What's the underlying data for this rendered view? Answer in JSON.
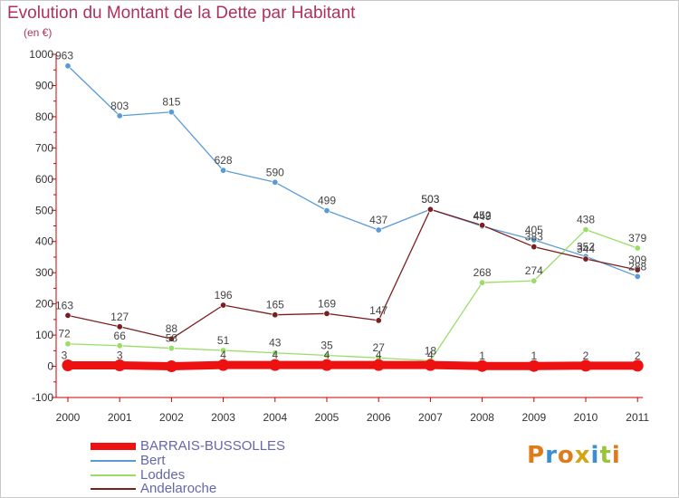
{
  "header": {
    "title": "Evolution du Montant de la Dette par Habitant",
    "subtitle": "(en €)"
  },
  "logo": {
    "text": "Proxiti",
    "colors": [
      "#e07b1c",
      "#3a8fd0",
      "#e07b1c",
      "#d6a516",
      "#3a8fd0",
      "#9ac43a",
      "#e07b1c"
    ]
  },
  "chart_data": {
    "type": "line",
    "title": "Evolution du Montant de la Dette par Habitant",
    "subtitle": "(en €)",
    "xlabel": "",
    "ylabel": "",
    "x": [
      "2000",
      "2001",
      "2002",
      "2003",
      "2004",
      "2005",
      "2006",
      "2007",
      "2008",
      "2009",
      "2010",
      "2011"
    ],
    "ylim": [
      -100,
      1000
    ],
    "yticks": [
      -100,
      0,
      100,
      200,
      300,
      400,
      500,
      600,
      700,
      800,
      900,
      1000
    ],
    "grid": false,
    "legend_position": "bottom-left",
    "series": [
      {
        "name": "BARRAIS-BUSSOLLES",
        "color": "#ee1111",
        "values": [
          3,
          3,
          0,
          4,
          4,
          4,
          4,
          4,
          1,
          1,
          2,
          2
        ],
        "labels": [
          "3",
          "3",
          "",
          "4",
          "4",
          "4",
          "4",
          "4",
          "1",
          "1",
          "2",
          "2"
        ]
      },
      {
        "name": "Bert",
        "color": "#5b9bd5",
        "values": [
          963,
          803,
          815,
          628,
          590,
          499,
          437,
          503,
          449,
          405,
          352,
          288
        ],
        "labels": [
          "963",
          "803",
          "815",
          "628",
          "590",
          "499",
          "437",
          "503",
          "449",
          "405",
          "352",
          "288"
        ]
      },
      {
        "name": "Loddes",
        "color": "#99dd66",
        "values": [
          72,
          66,
          58,
          51,
          43,
          35,
          27,
          18,
          268,
          274,
          438,
          379
        ],
        "labels": [
          "72",
          "66",
          "58",
          "51",
          "43",
          "35",
          "27",
          "18",
          "268",
          "274",
          "438",
          "379"
        ]
      },
      {
        "name": "Andelaroche",
        "color": "#7a1f1f",
        "values": [
          163,
          127,
          88,
          196,
          165,
          169,
          147,
          503,
          452,
          383,
          344,
          309
        ],
        "labels": [
          "163",
          "127",
          "88",
          "196",
          "165",
          "169",
          "147",
          "503",
          "452",
          "383",
          "344",
          "309"
        ]
      }
    ]
  }
}
